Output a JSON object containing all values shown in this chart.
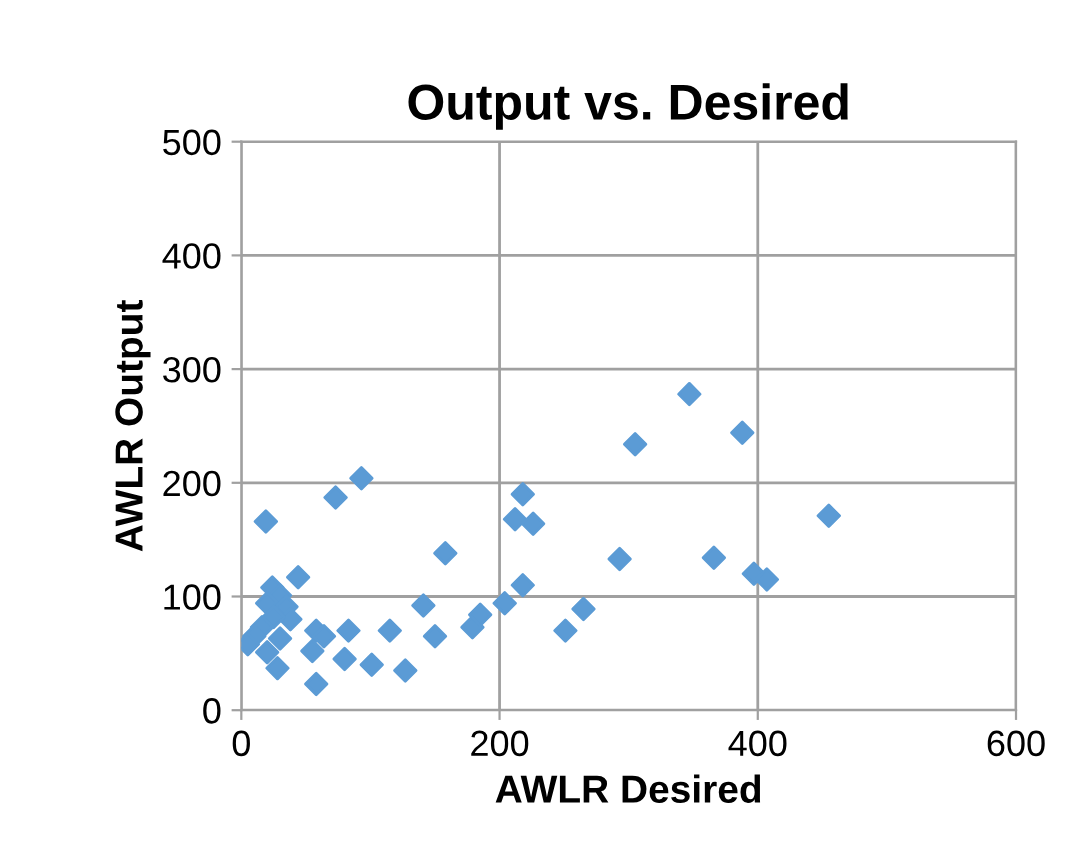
{
  "chart_data": {
    "type": "scatter",
    "title": "Output vs. Desired",
    "xlabel": "AWLR Desired",
    "ylabel": "AWLR Output",
    "x": [
      19,
      73,
      93,
      44,
      24,
      30,
      20,
      35,
      38,
      25,
      16,
      10,
      5,
      20,
      28,
      30,
      58,
      55,
      64,
      80,
      83,
      58,
      101,
      115,
      127,
      141,
      150,
      158,
      179,
      185,
      204,
      212,
      218,
      226,
      218,
      347,
      305,
      388,
      455,
      293,
      366,
      397,
      407,
      265,
      251
    ],
    "series": [
      {
        "color": "#5b9bd5",
        "values": [
          166,
          187,
          204,
          117,
          108,
          101,
          94,
          91,
          80,
          82,
          73,
          65,
          58,
          51,
          37,
          63,
          70,
          52,
          65,
          45,
          70,
          23,
          40,
          70,
          35,
          92,
          65,
          138,
          73,
          84,
          94,
          168,
          190,
          164,
          110,
          278,
          234,
          244,
          171,
          133,
          134,
          120,
          115,
          89,
          70
        ]
      }
    ],
    "marker": "diamond",
    "xlim": [
      0,
      600
    ],
    "xticks": [
      0,
      200,
      400,
      600
    ],
    "ylim": [
      0,
      500
    ],
    "yticks": [
      0,
      100,
      200,
      300,
      400,
      500
    ],
    "grid": true,
    "legend": false
  }
}
